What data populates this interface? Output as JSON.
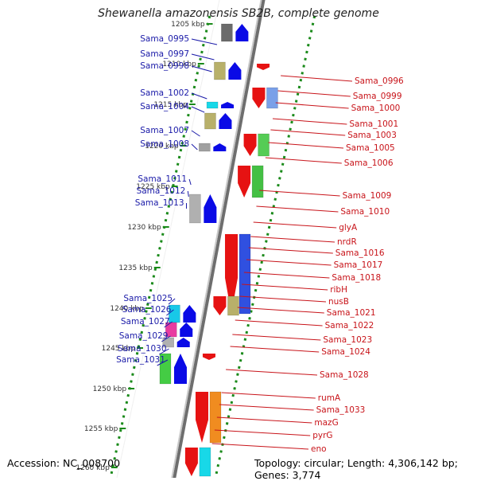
{
  "title": "Shewanella amazonensis SB2B, complete genome",
  "accession": "Accession: NC_008700",
  "summary": "Topology: circular; Length: 4,306,142 bp; Genes: 3,774",
  "colors": {
    "left_label": "#1a1aa8",
    "right_label": "#c8141a",
    "forward_gene": "#0a0ae6",
    "reverse_gene": "#e61212",
    "tick": "#1a8a1a",
    "backbone": "#909090"
  },
  "scale_ticks": [
    "1205 kbp",
    "1210 kbp",
    "1215 kbp",
    "1220 kbp",
    "1225 kbp",
    "1230 kbp",
    "1235 kbp",
    "1240 kbp",
    "1245 kbp",
    "1250 kbp",
    "1255 kbp",
    "1260 kbp"
  ],
  "left_genes": [
    "Sama_0995",
    "Sama_0997",
    "Sama_0998",
    "Sama_1002",
    "Sama_1004",
    "Sama_1007",
    "Sama_1008",
    "Sama_1011",
    "Sama_1012",
    "Sama_1013",
    "Sama_1025",
    "Sama_1026",
    "Sama_1027",
    "Sama_1029",
    "Sama_1030",
    "Sama_1031"
  ],
  "right_genes": [
    "Sama_0996",
    "Sama_0999",
    "Sama_1000",
    "Sama_1001",
    "Sama_1003",
    "Sama_1005",
    "Sama_1006",
    "Sama_1009",
    "Sama_1010",
    "glyA",
    "nrdR",
    "Sama_1016",
    "Sama_1017",
    "Sama_1018",
    "ribH",
    "nusB",
    "Sama_1021",
    "Sama_1022",
    "Sama_1023",
    "Sama_1024",
    "Sama_1028",
    "rumA",
    "Sama_1033",
    "mazG",
    "pyrG",
    "eno"
  ]
}
